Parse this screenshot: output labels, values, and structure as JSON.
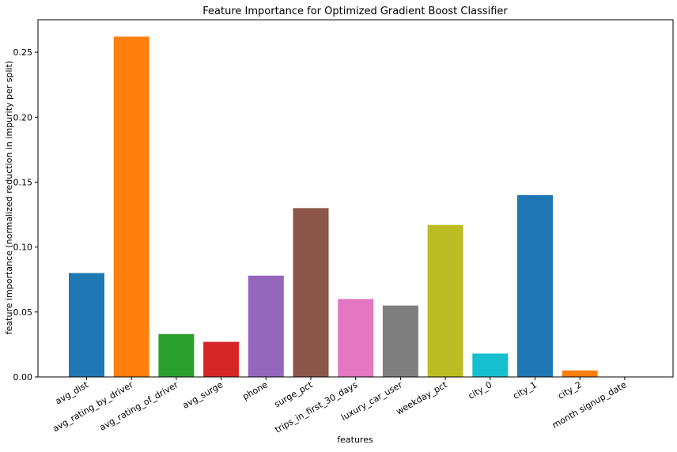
{
  "chart_data": {
    "type": "bar",
    "title": "Feature Importance for Optimized Gradient Boost Classifier",
    "xlabel": "features",
    "ylabel": "feature importance (normalized reduction in impurity per split)",
    "ylim": [
      0,
      0.275
    ],
    "yticks": [
      0.0,
      0.05,
      0.1,
      0.15,
      0.2,
      0.25
    ],
    "ytick_labels": [
      "0.00",
      "0.05",
      "0.10",
      "0.15",
      "0.20",
      "0.25"
    ],
    "grid": false,
    "categories": [
      "avg_dist",
      "avg_rating_by_driver",
      "avg_rating_of_driver",
      "avg_surge",
      "phone",
      "surge_pct",
      "trips_in_first_30_days",
      "luxury_car_user",
      "weekday_pct",
      "city_0",
      "city_1",
      "city_2",
      "month signup_date"
    ],
    "values": [
      0.08,
      0.262,
      0.033,
      0.027,
      0.078,
      0.13,
      0.06,
      0.055,
      0.117,
      0.018,
      0.14,
      0.005,
      0.0
    ],
    "colors": [
      "#1f77b4",
      "#ff7f0e",
      "#2ca02c",
      "#d62728",
      "#9467bd",
      "#8c564b",
      "#e377c2",
      "#7f7f7f",
      "#bcbd22",
      "#17becf",
      "#1f77b4",
      "#ff7f0e",
      "#2ca02c"
    ],
    "tick_label_rotation_deg": 30
  }
}
